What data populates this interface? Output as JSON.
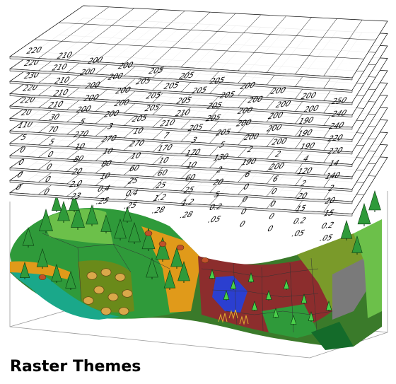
{
  "caption": "Raster Themes",
  "theme_colors": {
    "forest_green": "#2f9a3a",
    "light_green": "#6cc04a",
    "teal": "#1aa88a",
    "brown_red": "#8c2d2d",
    "blue": "#2b3fd0",
    "orange": "#e09a1a",
    "olive": "#7a9a2a",
    "gray": "#7a7a7a",
    "dark_green": "#146b2a"
  },
  "icons": [
    "pine-tree-icon",
    "round-tree-icon",
    "sapling-icon",
    "shrub-icon",
    "grass-icon"
  ],
  "layers": [
    [
      "220",
      "210",
      "200",
      "200",
      "205",
      "205",
      "205",
      "200",
      "200",
      "200",
      "250"
    ],
    [
      "220",
      "210",
      "200",
      "200",
      "205",
      "205",
      "205",
      "205",
      "200",
      "200",
      "200",
      "240"
    ],
    [
      "230",
      "210",
      "200",
      "200",
      "205",
      "205",
      "205",
      "200",
      "200",
      "190",
      "240"
    ],
    [
      "220",
      "210",
      "200",
      "200",
      "205",
      "210",
      "205",
      "200",
      "200",
      "190",
      "220"
    ],
    [
      "220",
      "210",
      "200",
      "200",
      "205",
      "210",
      "205",
      "205",
      "200",
      "200",
      "190",
      "220"
    ],
    [
      "20",
      "30",
      "5",
      "3",
      "10",
      "7",
      "3",
      "5",
      "2",
      "2",
      "4",
      "14"
    ],
    [
      "110",
      "70",
      "270",
      "270",
      "270",
      "170",
      "170",
      "130",
      "190",
      "200",
      "120",
      "140"
    ],
    [
      "5",
      "5",
      "10",
      "10",
      "10",
      "10",
      "10",
      "2",
      "6",
      "6",
      "2",
      "2"
    ],
    [
      "0",
      "0",
      "80",
      "80",
      "60",
      "60",
      "60",
      "20",
      "0",
      "0",
      "20",
      "20"
    ],
    [
      "0",
      "0",
      "20",
      "10",
      "25",
      "25",
      "25",
      "5",
      "0",
      "0",
      "15",
      "15"
    ],
    [
      "0",
      "0",
      "2.0",
      "0.4",
      "0.4",
      "1.2",
      "1.2",
      "0.2",
      "0",
      "0",
      "0.2",
      "0.2"
    ],
    [
      "0",
      "0",
      ".23",
      ".25",
      ".25",
      ".28",
      ".28",
      ".05",
      "0",
      "0",
      ".05",
      ".05"
    ]
  ]
}
